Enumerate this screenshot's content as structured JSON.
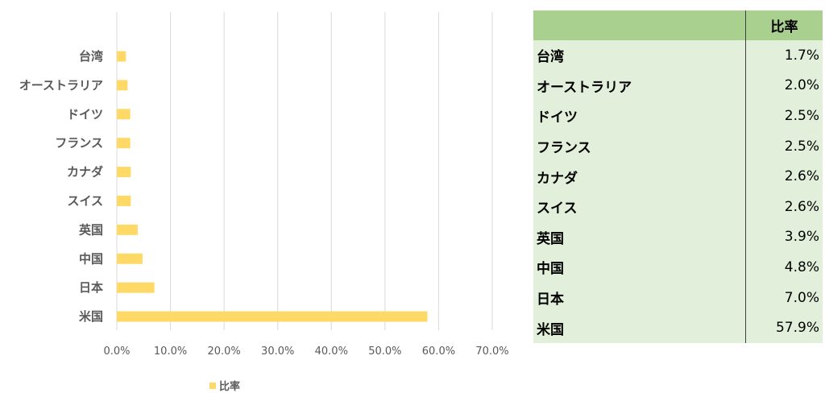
{
  "chart_data": {
    "type": "bar",
    "orientation": "horizontal",
    "categories": [
      "台湾",
      "オーストラリア",
      "ドイツ",
      "フランス",
      "カナダ",
      "スイス",
      "英国",
      "中国",
      "日本",
      "米国"
    ],
    "series": [
      {
        "name": "比率",
        "values": [
          1.7,
          2.0,
          2.5,
          2.5,
          2.6,
          2.6,
          3.9,
          4.8,
          7.0,
          57.9
        ]
      }
    ],
    "xlim": [
      0,
      70
    ],
    "xticks": [
      "0.0%",
      "10.0%",
      "20.0%",
      "30.0%",
      "40.0%",
      "50.0%",
      "60.0%",
      "70.0%"
    ],
    "grid": true,
    "legend": "bottom",
    "colors": {
      "bar": "#ffd966",
      "grid": "#d9d9d9"
    }
  },
  "table": {
    "header": [
      "",
      "比率"
    ],
    "rows": [
      {
        "name": "台湾",
        "value": "1.7%"
      },
      {
        "name": "オーストラリア",
        "value": "2.0%"
      },
      {
        "name": "ドイツ",
        "value": "2.5%"
      },
      {
        "name": "フランス",
        "value": "2.5%"
      },
      {
        "name": "カナダ",
        "value": "2.6%"
      },
      {
        "name": "スイス",
        "value": "2.6%"
      },
      {
        "name": "英国",
        "value": "3.9%"
      },
      {
        "name": "中国",
        "value": "4.8%"
      },
      {
        "name": "日本",
        "value": "7.0%"
      },
      {
        "name": "米国",
        "value": "57.9%"
      }
    ],
    "colors": {
      "header": "#a9d08e",
      "body": "#e2efda"
    }
  }
}
